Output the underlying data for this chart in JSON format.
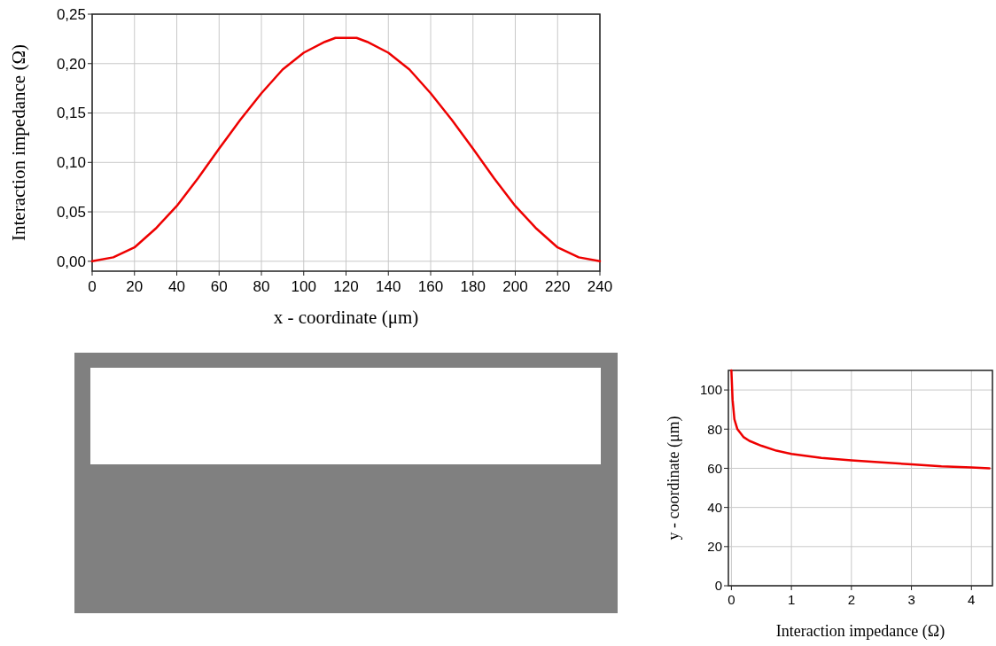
{
  "chart_data": [
    {
      "type": "line",
      "xlabel": "x - coordinate (μm)",
      "ylabel": "Interaction impedance (Ω)",
      "x": [
        0,
        10,
        20,
        30,
        40,
        50,
        60,
        70,
        80,
        90,
        100,
        110,
        115,
        120,
        125,
        130,
        140,
        150,
        160,
        170,
        180,
        190,
        200,
        210,
        220,
        230,
        240
      ],
      "series": [
        {
          "color": "#ee0000",
          "values": [
            0,
            0.004,
            0.014,
            0.033,
            0.056,
            0.084,
            0.114,
            0.143,
            0.17,
            0.194,
            0.211,
            0.222,
            0.226,
            0.226,
            0.226,
            0.222,
            0.211,
            0.194,
            0.17,
            0.143,
            0.114,
            0.084,
            0.056,
            0.033,
            0.014,
            0.004,
            0
          ]
        }
      ],
      "xlim": [
        0,
        240
      ],
      "xticks": [
        0,
        20,
        40,
        60,
        80,
        100,
        120,
        140,
        160,
        180,
        200,
        220,
        240
      ],
      "ylim": [
        -0.01,
        0.25
      ],
      "yticks": [
        {
          "value": 0,
          "label": "0,00"
        },
        {
          "value": 0.05,
          "label": "0,05"
        },
        {
          "value": 0.1,
          "label": "0,10"
        },
        {
          "value": 0.15,
          "label": "0,15"
        },
        {
          "value": 0.2,
          "label": "0,20"
        },
        {
          "value": 0.25,
          "label": "0,25"
        }
      ],
      "grid": true,
      "marker": "none",
      "line_style": "solid"
    },
    {
      "type": "line",
      "xlabel": "Interaction impedance (Ω)",
      "ylabel": "y - coordinate (μm)",
      "x": [
        0,
        0.02,
        0.05,
        0.1,
        0.2,
        0.3,
        0.5,
        0.75,
        1,
        1.5,
        2,
        2.5,
        3,
        3.5,
        4,
        4.3
      ],
      "series": [
        {
          "color": "#ee0000",
          "values": [
            110,
            95,
            85,
            80,
            76,
            74,
            71.5,
            69,
            67.3,
            65.3,
            64,
            63,
            62,
            61,
            60.4,
            60
          ]
        }
      ],
      "xlim": [
        -0.05,
        4.35
      ],
      "xticks": [
        0,
        1,
        2,
        3,
        4
      ],
      "ylim": [
        0,
        110
      ],
      "yticks": [
        0,
        20,
        40,
        60,
        80,
        100
      ],
      "grid": true,
      "marker": "none",
      "line_style": "solid"
    }
  ]
}
